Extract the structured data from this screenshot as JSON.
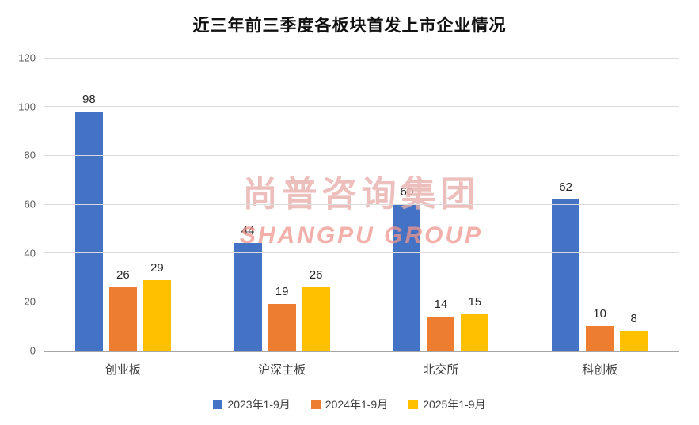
{
  "title": "近三年前三季度各板块首发上市企业情况",
  "watermark": {
    "line1": "尚普咨询集团",
    "line2": "SHANGPU GROUP",
    "color_line1": "#e8b0ac",
    "color_line2": "#f0958d"
  },
  "chart_data": {
    "type": "bar",
    "title": "近三年前三季度各板块首发上市企业情况",
    "categories": [
      "创业板",
      "沪深主板",
      "北交所",
      "科创板"
    ],
    "series": [
      {
        "name": "2023年1-9月",
        "color": "#4472C4",
        "values": [
          98,
          44,
          60,
          62
        ]
      },
      {
        "name": "2024年1-9月",
        "color": "#ED7D31",
        "values": [
          26,
          19,
          14,
          10
        ]
      },
      {
        "name": "2025年1-9月",
        "color": "#FFC000",
        "values": [
          29,
          26,
          15,
          8
        ]
      }
    ],
    "xlabel": "",
    "ylabel": "",
    "ylim": [
      0,
      120
    ],
    "yticks": [
      0,
      20,
      40,
      60,
      80,
      100,
      120
    ],
    "grid": true,
    "grid_color": "#dcdcdc",
    "axis_line_color": "#a6a6a6",
    "legend_position": "bottom",
    "data_labels": true
  }
}
